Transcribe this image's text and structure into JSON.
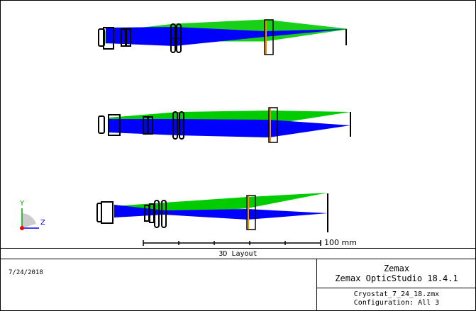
{
  "plot": {
    "axis_y_label": "Y",
    "axis_z_label": "Z",
    "scale_bar_label": "100 mm",
    "colors": {
      "lens": "#000000",
      "window": "#ff8c00",
      "ray_field_1": "#0000ff",
      "ray_field_2": "#00cc00",
      "axis_y": "#00aa00",
      "axis_z": "#0000ff",
      "axis_x": "#ff0000"
    }
  },
  "caption": {
    "title": "3D Layout"
  },
  "footer": {
    "date": "7/24/2018",
    "company": "Zemax",
    "product": "Zemax OpticStudio 18.4.1",
    "file": "Cryostat_7_24_18.zmx",
    "configuration": "Configuration: All 3"
  }
}
